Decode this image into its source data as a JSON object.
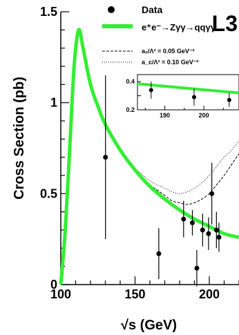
{
  "chart_data": {
    "type": "line",
    "xlabel": "√s (GeV)",
    "ylabel": "Cross Section (pb)",
    "xlim": [
      100,
      220
    ],
    "ylim": [
      0,
      1.5
    ],
    "x_ticks": [
      "100",
      "150",
      "200"
    ],
    "y_ticks": [
      "0",
      "0.5",
      "1",
      "1.5"
    ],
    "experiment_label": "L3",
    "legend_position": "top-right",
    "legend": {
      "data": "Data",
      "sm": "e⁺e⁻→Zγγ→qqγγ",
      "a0": "a₀/Λ² = 0.05 GeV⁻²",
      "ac": "a_c/Λ² = 0.10 GeV⁻²"
    },
    "colors": {
      "sm": "#33ee33",
      "data": "#000000"
    },
    "data_points": [
      {
        "x": 130.1,
        "y": 0.7,
        "y_err": 0.45
      },
      {
        "x": 166.0,
        "y": 0.17,
        "y_err": 0.14
      },
      {
        "x": 182.7,
        "y": 0.36,
        "y_err": 0.1
      },
      {
        "x": 188.6,
        "y": 0.34,
        "y_err": 0.07
      },
      {
        "x": 191.6,
        "y": 0.09,
        "y_err": 0.1
      },
      {
        "x": 195.5,
        "y": 0.3,
        "y_err": 0.09
      },
      {
        "x": 199.5,
        "y": 0.28,
        "y_err": 0.09
      },
      {
        "x": 201.7,
        "y": 0.5,
        "y_err": 0.17
      },
      {
        "x": 204.8,
        "y": 0.3,
        "y_err": 0.1
      },
      {
        "x": 206.5,
        "y": 0.26,
        "y_err": 0.08
      }
    ],
    "sm_curve": [
      [
        100,
        0
      ],
      [
        103,
        0.3
      ],
      [
        106,
        0.75
      ],
      [
        109,
        1.2
      ],
      [
        112,
        1.4
      ],
      [
        115,
        1.3
      ],
      [
        120,
        1.1
      ],
      [
        125,
        0.98
      ],
      [
        130,
        0.88
      ],
      [
        140,
        0.74
      ],
      [
        150,
        0.63
      ],
      [
        160,
        0.54
      ],
      [
        170,
        0.47
      ],
      [
        180,
        0.41
      ],
      [
        190,
        0.36
      ],
      [
        200,
        0.32
      ],
      [
        210,
        0.28
      ],
      [
        220,
        0.26
      ]
    ],
    "a0_curve": [
      [
        150,
        0.63
      ],
      [
        160,
        0.55
      ],
      [
        170,
        0.49
      ],
      [
        175,
        0.46
      ],
      [
        180,
        0.45
      ],
      [
        185,
        0.44
      ],
      [
        190,
        0.45
      ],
      [
        195,
        0.47
      ],
      [
        200,
        0.5
      ],
      [
        205,
        0.55
      ],
      [
        210,
        0.6
      ],
      [
        215,
        0.66
      ],
      [
        220,
        0.72
      ]
    ],
    "ac_curve": [
      [
        150,
        0.64
      ],
      [
        160,
        0.57
      ],
      [
        170,
        0.53
      ],
      [
        175,
        0.51
      ],
      [
        180,
        0.5
      ],
      [
        185,
        0.51
      ],
      [
        190,
        0.53
      ],
      [
        195,
        0.56
      ],
      [
        200,
        0.6
      ],
      [
        205,
        0.65
      ],
      [
        210,
        0.7
      ],
      [
        215,
        0.74
      ],
      [
        220,
        0.79
      ]
    ],
    "inset": {
      "xlim": [
        183,
        209
      ],
      "ylim": [
        0.2,
        0.45
      ],
      "x_ticks": [
        "190",
        "200"
      ],
      "y_ticks": [
        "0.2",
        "0.4"
      ],
      "sm_line": [
        [
          183,
          0.385
        ],
        [
          209,
          0.32
        ]
      ],
      "points": [
        {
          "x": 186.5,
          "y": 0.34,
          "y_err": 0.06
        },
        {
          "x": 197.5,
          "y": 0.29,
          "y_err": 0.06
        },
        {
          "x": 206.5,
          "y": 0.27,
          "y_err": 0.05
        }
      ]
    }
  }
}
